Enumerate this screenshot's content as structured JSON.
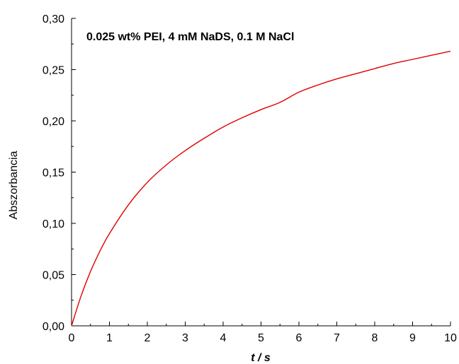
{
  "chart_data": {
    "type": "line",
    "title": "",
    "annotation": "0.025 wt% PEI, 4 mM NaDS, 0.1 M NaCl",
    "xlabel": "t / s",
    "ylabel": "Abszorbancia",
    "xlim": [
      0,
      10
    ],
    "ylim": [
      0,
      0.3
    ],
    "x_ticks": [
      "0",
      "1",
      "2",
      "3",
      "4",
      "5",
      "6",
      "7",
      "8",
      "9",
      "10"
    ],
    "y_ticks": [
      "0,00",
      "0,05",
      "0,10",
      "0,15",
      "0,20",
      "0,25",
      "0,30"
    ],
    "grid": false,
    "series": [
      {
        "color": "#e00000",
        "x": [
          0,
          0.25,
          0.5,
          0.75,
          1,
          1.5,
          2,
          2.5,
          3,
          3.5,
          4,
          4.5,
          5,
          5.5,
          6,
          6.5,
          7,
          7.5,
          8,
          8.5,
          9,
          9.5,
          10
        ],
        "y": [
          0,
          0.029,
          0.053,
          0.073,
          0.09,
          0.118,
          0.14,
          0.157,
          0.171,
          0.183,
          0.194,
          0.203,
          0.211,
          0.218,
          0.228,
          0.235,
          0.241,
          0.246,
          0.251,
          0.256,
          0.26,
          0.264,
          0.268
        ]
      }
    ]
  }
}
